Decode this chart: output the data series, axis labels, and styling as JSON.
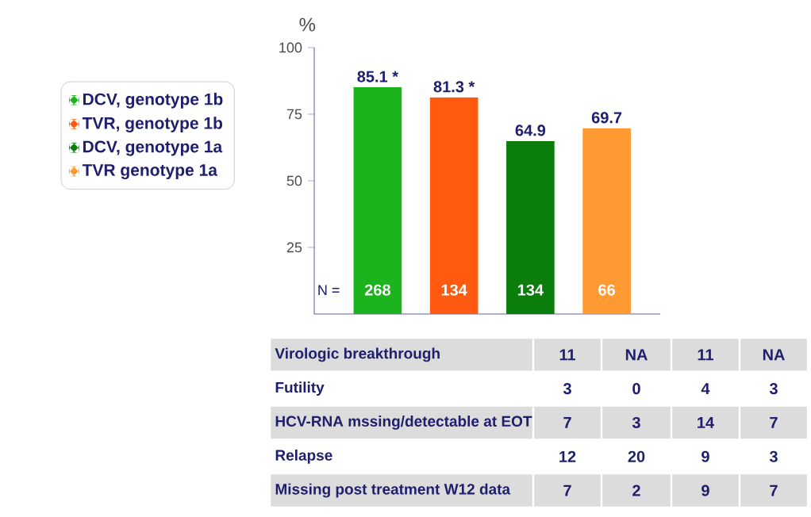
{
  "chart_data": [
    {
      "type": "bar",
      "ylabel": "%",
      "categories": [
        null,
        null,
        null,
        null
      ],
      "series": [
        {
          "name": "DCV, genotype 1b",
          "color": "#1db31d",
          "values": [
            85.1,
            null,
            null,
            null
          ],
          "value_labels": [
            "85.1 *",
            null,
            null,
            null
          ]
        },
        {
          "name": "TVR, genotype 1b",
          "color": "#ff5a0f",
          "values": [
            null,
            81.3,
            null,
            null
          ],
          "value_labels": [
            null,
            "81.3 *",
            null,
            null
          ]
        },
        {
          "name": "DCV, genotype 1a",
          "color": "#0a7d0a",
          "values": [
            null,
            null,
            64.9,
            null
          ],
          "value_labels": [
            null,
            null,
            "64.9",
            null
          ]
        },
        {
          "name": "TVR genotype 1a",
          "color": "#ff9a33",
          "values": [
            null,
            null,
            null,
            69.7
          ],
          "value_labels": [
            null,
            null,
            null,
            "69.7"
          ]
        }
      ],
      "ylim": [
        0,
        100
      ],
      "yticks": [
        25,
        50,
        75,
        100
      ],
      "legend": "left",
      "annotations": [
        "N =",
        "268",
        "134",
        "134",
        "66"
      ]
    },
    {
      "type": "other",
      "annotations": [
        "Virologic breakthrough",
        "11",
        "NA",
        "11",
        "NA",
        "Futility",
        "3",
        "0",
        "4",
        "3",
        "HCV-RNA mssing/detectable at EOT",
        "7",
        "3",
        "14",
        "7",
        "Relapse",
        "12",
        "20",
        "9",
        "3",
        "Missing post treatment W12 data",
        "7",
        "2",
        "9",
        "7"
      ]
    }
  ]
}
